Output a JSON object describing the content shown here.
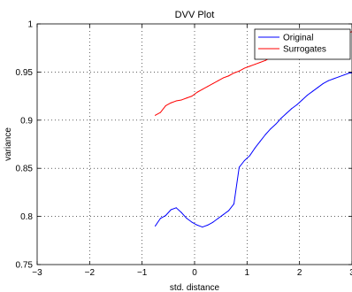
{
  "chart_data": {
    "type": "line",
    "title": "DVV Plot",
    "xlabel": "std. distance",
    "ylabel": "variance",
    "xlim": [
      -3,
      3
    ],
    "ylim": [
      0.75,
      1
    ],
    "xticks": [
      -3,
      -2,
      -1,
      0,
      1,
      2,
      3
    ],
    "xtick_labels": [
      "−3",
      "−2",
      "−1",
      "0",
      "1",
      "2",
      "3"
    ],
    "yticks": [
      0.75,
      0.8,
      0.85,
      0.9,
      0.95,
      1
    ],
    "ytick_labels": [
      "0.75",
      "0.8",
      "0.85",
      "0.9",
      "0.95",
      "1"
    ],
    "grid": true,
    "legend_position": "top-right",
    "series": [
      {
        "name": "Original",
        "color": "#0000ff",
        "x": [
          -0.75,
          -0.65,
          -0.55,
          -0.45,
          -0.35,
          -0.25,
          -0.15,
          -0.05,
          0.05,
          0.15,
          0.25,
          0.35,
          0.45,
          0.55,
          0.65,
          0.75,
          0.85,
          0.95,
          1.05,
          1.15,
          1.25,
          1.35,
          1.45,
          1.55,
          1.65,
          1.75,
          1.85,
          1.95,
          2.05,
          2.15,
          2.25,
          2.35,
          2.45,
          2.55,
          2.65,
          2.75,
          2.85,
          2.95,
          3.0
        ],
        "y": [
          0.79,
          0.798,
          0.801,
          0.807,
          0.809,
          0.804,
          0.798,
          0.794,
          0.791,
          0.789,
          0.791,
          0.794,
          0.798,
          0.802,
          0.806,
          0.813,
          0.851,
          0.858,
          0.863,
          0.871,
          0.878,
          0.885,
          0.891,
          0.896,
          0.902,
          0.907,
          0.912,
          0.916,
          0.921,
          0.926,
          0.93,
          0.934,
          0.938,
          0.941,
          0.943,
          0.945,
          0.947,
          0.949,
          0.949
        ]
      },
      {
        "name": "Surrogates",
        "color": "#ff0000",
        "x": [
          -0.75,
          -0.65,
          -0.55,
          -0.45,
          -0.35,
          -0.25,
          -0.15,
          -0.05,
          0.05,
          0.15,
          0.25,
          0.35,
          0.45,
          0.55,
          0.65,
          0.75,
          0.85,
          0.95,
          1.05,
          1.15,
          1.25,
          1.35,
          1.45,
          1.55,
          1.65,
          1.75,
          1.85,
          1.95,
          2.05,
          2.15,
          2.25,
          2.35,
          2.45,
          2.55,
          2.65,
          2.75,
          2.85,
          2.95,
          3.0
        ],
        "y": [
          0.905,
          0.908,
          0.915,
          0.918,
          0.92,
          0.921,
          0.923,
          0.925,
          0.929,
          0.932,
          0.935,
          0.938,
          0.941,
          0.944,
          0.946,
          0.949,
          0.951,
          0.954,
          0.956,
          0.958,
          0.96,
          0.962,
          0.965,
          0.967,
          0.969,
          0.971,
          0.973,
          0.975,
          0.977,
          0.979,
          0.981,
          0.983,
          0.985,
          0.986,
          0.988,
          0.989,
          0.99,
          0.991,
          0.992
        ]
      }
    ]
  }
}
